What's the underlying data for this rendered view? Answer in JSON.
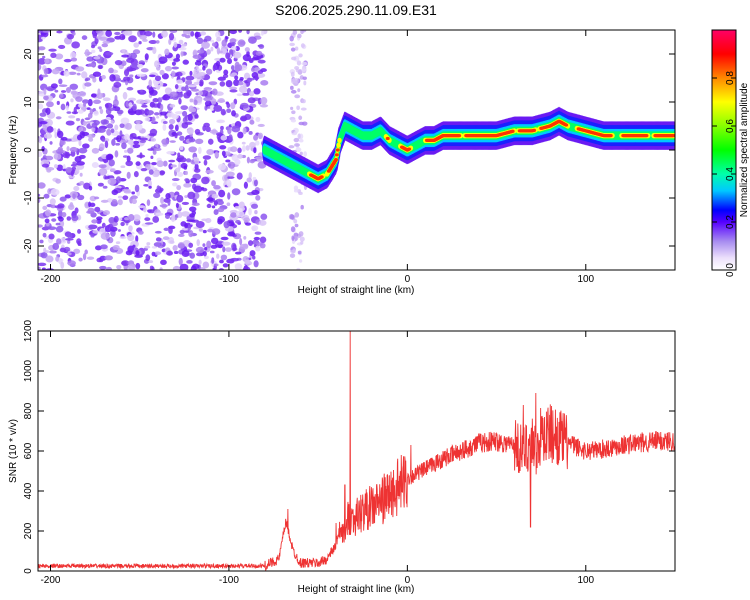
{
  "title": "S206.2025.290.11.09.E31",
  "chart_data": [
    {
      "type": "heatmap",
      "title": "S206.2025.290.11.09.E31",
      "xlabel": "Height of straight line (km)",
      "ylabel": "Frequency (Hz)",
      "xlim": [
        -207,
        150
      ],
      "ylim": [
        -25,
        25
      ],
      "xticks": [
        -200,
        -100,
        0,
        100
      ],
      "yticks": [
        -20,
        -10,
        0,
        10,
        20
      ],
      "colorbar": {
        "label": "Normalized spectral amplitude",
        "range": [
          0,
          1
        ],
        "ticks": [
          0.0,
          0.2,
          0.4,
          0.6,
          0.8
        ],
        "tick_labels": [
          "0.0",
          "0.2",
          "0.4",
          "0.6",
          "0.8"
        ]
      },
      "ridge": {
        "x": [
          -80,
          -75,
          -70,
          -65,
          -60,
          -55,
          -50,
          -45,
          -40,
          -38,
          -35,
          -30,
          -25,
          -20,
          -15,
          -10,
          -5,
          0,
          5,
          10,
          15,
          20,
          30,
          40,
          50,
          60,
          70,
          80,
          85,
          90,
          100,
          110,
          120,
          130,
          140,
          150
        ],
        "y": [
          0,
          -1,
          -2,
          -3,
          -4,
          -5,
          -6,
          -5,
          -2,
          2,
          5,
          4,
          3,
          3,
          4,
          2,
          1,
          0,
          1,
          2,
          2,
          3,
          3,
          3,
          3,
          4,
          4,
          5,
          6,
          5,
          4,
          3,
          3,
          3,
          3,
          3
        ]
      }
    },
    {
      "type": "line",
      "xlabel": "Height of straight line (km)",
      "ylabel": "SNR (10 * v/v)",
      "xlim": [
        -207,
        150
      ],
      "ylim": [
        0,
        1200
      ],
      "xticks": [
        -200,
        -100,
        0,
        100
      ],
      "yticks": [
        0,
        200,
        400,
        600,
        800,
        1000,
        1200
      ],
      "series_color": "#ee3333",
      "envelope": {
        "x": [
          -207,
          -150,
          -100,
          -80,
          -72,
          -68,
          -64,
          -60,
          -50,
          -45,
          -40,
          -37,
          -35,
          -33,
          -30,
          -25,
          -20,
          -15,
          -10,
          -5,
          0,
          10,
          20,
          30,
          40,
          50,
          60,
          65,
          70,
          72,
          75,
          80,
          85,
          90,
          100,
          110,
          120,
          130,
          140,
          150
        ],
        "y": [
          25,
          25,
          25,
          25,
          60,
          250,
          100,
          40,
          40,
          60,
          130,
          210,
          150,
          280,
          260,
          300,
          320,
          350,
          380,
          420,
          460,
          510,
          560,
          600,
          640,
          650,
          630,
          600,
          660,
          590,
          680,
          690,
          670,
          640,
          600,
          610,
          630,
          640,
          650,
          650
        ]
      },
      "spikes": [
        {
          "x": -67,
          "y": 310
        },
        {
          "x": -40,
          "y": 240
        },
        {
          "x": -35,
          "y": 430
        },
        {
          "x": -32,
          "y": 1200
        },
        {
          "x": 2,
          "y": 630
        },
        {
          "x": 65,
          "y": 830
        },
        {
          "x": 69,
          "y": 220
        },
        {
          "x": 72,
          "y": 890
        }
      ]
    }
  ]
}
